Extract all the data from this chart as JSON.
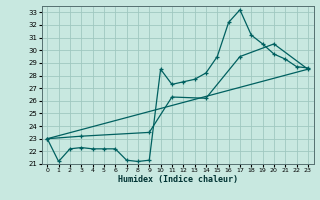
{
  "xlabel": "Humidex (Indice chaleur)",
  "bg_color": "#c8e8e0",
  "grid_color": "#a0c8c0",
  "line_color": "#006060",
  "xlim": [
    -0.5,
    23.5
  ],
  "ylim": [
    21,
    33.5
  ],
  "xticks": [
    0,
    1,
    2,
    3,
    4,
    5,
    6,
    7,
    8,
    9,
    10,
    11,
    12,
    13,
    14,
    15,
    16,
    17,
    18,
    19,
    20,
    21,
    22,
    23
  ],
  "yticks": [
    21,
    22,
    23,
    24,
    25,
    26,
    27,
    28,
    29,
    30,
    31,
    32,
    33
  ],
  "line1_x": [
    0,
    1,
    2,
    3,
    4,
    5,
    6,
    7,
    8,
    9,
    10,
    11,
    12,
    13,
    14,
    15,
    16,
    17,
    18,
    19,
    20,
    21,
    22,
    23
  ],
  "line1_y": [
    23.0,
    21.2,
    22.2,
    22.3,
    22.2,
    22.2,
    22.2,
    21.3,
    21.2,
    21.3,
    28.5,
    27.3,
    27.5,
    27.7,
    28.2,
    29.5,
    32.2,
    33.2,
    31.2,
    30.5,
    29.7,
    29.3,
    28.7,
    28.6
  ],
  "line2_x": [
    0,
    3,
    9,
    11,
    14,
    17,
    20,
    23
  ],
  "line2_y": [
    23.0,
    23.2,
    23.5,
    26.3,
    26.2,
    29.5,
    30.5,
    28.5
  ],
  "line3_x": [
    0,
    23
  ],
  "line3_y": [
    23.0,
    28.5
  ]
}
